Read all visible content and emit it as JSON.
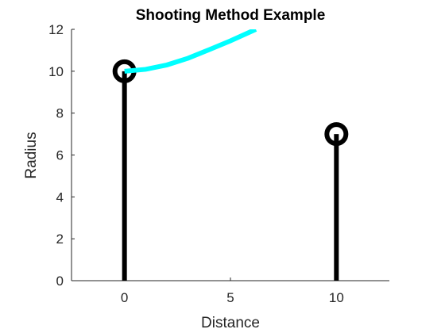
{
  "chart_data": {
    "type": "line",
    "title": "Shooting Method Example",
    "xlabel": "Distance",
    "ylabel": "Radius",
    "xlim": [
      -2.5,
      12.5
    ],
    "ylim": [
      0,
      12
    ],
    "xticks": [
      0,
      5,
      10
    ],
    "yticks": [
      0,
      2,
      4,
      6,
      8,
      10,
      12
    ],
    "grid": false,
    "legend": "none",
    "colors": {
      "posts": "#000000",
      "trajectory": "#00ffff",
      "axis": "#262626"
    },
    "series": [
      {
        "type": "stem",
        "x": [
          0,
          10
        ],
        "values": [
          10,
          7
        ],
        "color": "#000000",
        "marker": "circle-open"
      },
      {
        "type": "line",
        "x": [
          0,
          1,
          2,
          3,
          4,
          5,
          6.2
        ],
        "values": [
          10,
          10.09,
          10.3,
          10.62,
          11.03,
          11.45,
          12
        ],
        "color": "#00ffff",
        "clipped": true
      }
    ]
  }
}
